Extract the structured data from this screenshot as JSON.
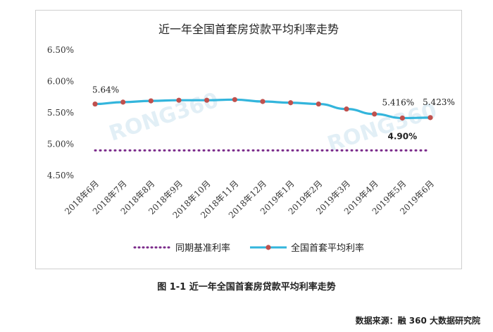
{
  "chart_data": {
    "type": "line",
    "title": "近一年全国首套房贷款平均利率走势",
    "categories": [
      "2018年6月",
      "2018年7月",
      "2018年8月",
      "2018年9月",
      "2018年10月",
      "2018年11月",
      "2018年12月",
      "2019年1月",
      "2019年2月",
      "2019年3月",
      "2019年4月",
      "2019年5月",
      "2019年6月"
    ],
    "y_ticks": [
      "4.50%",
      "5.00%",
      "5.50%",
      "6.00%",
      "6.50%"
    ],
    "ylim": [
      4.5,
      6.5
    ],
    "series": [
      {
        "name": "同期基准利率",
        "values": [
          4.9,
          4.9,
          4.9,
          4.9,
          4.9,
          4.9,
          4.9,
          4.9,
          4.9,
          4.9,
          4.9,
          4.9,
          4.9
        ],
        "style": "dotted",
        "color": "#7a2a8a"
      },
      {
        "name": "全国首套平均利率",
        "values": [
          5.64,
          5.67,
          5.69,
          5.7,
          5.7,
          5.71,
          5.68,
          5.66,
          5.64,
          5.56,
          5.48,
          5.416,
          5.423
        ],
        "style": "line",
        "color": "#33b5dc",
        "marker_color": "#c0504d"
      }
    ],
    "annotations": [
      {
        "text": "5.64%",
        "index": 0,
        "series": 1
      },
      {
        "text": "5.416%",
        "index": 11,
        "series": 1
      },
      {
        "text": "5.423%",
        "index": 12,
        "series": 1
      },
      {
        "text": "4.90%",
        "index": 11,
        "series": 0
      }
    ],
    "watermark": "RONG360",
    "legend_position": "bottom",
    "grid": false
  },
  "caption": "图 1-1  近一年全国首套房贷款平均利率走势",
  "source": "数据来源：融 360 大数据研究院"
}
